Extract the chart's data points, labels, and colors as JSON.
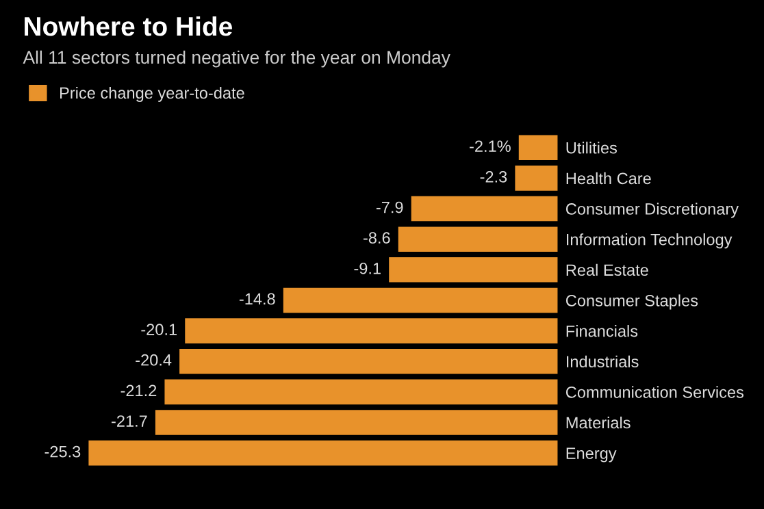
{
  "chart_data": {
    "type": "bar",
    "orientation": "horizontal",
    "title": "Nowhere to Hide",
    "subtitle": "All 11 sectors turned negative for the year on Monday",
    "categories": [
      "Utilities",
      "Health Care",
      "Consumer Discretionary",
      "Information Technology",
      "Real Estate",
      "Consumer Staples",
      "Financials",
      "Industrials",
      "Communication Services",
      "Materials",
      "Energy"
    ],
    "series": [
      {
        "name": "Price change year-to-date",
        "color": "#e8922b",
        "values": [
          -2.1,
          -2.3,
          -7.9,
          -8.6,
          -9.1,
          -14.8,
          -20.1,
          -20.4,
          -21.2,
          -21.7,
          -25.3
        ],
        "value_labels": [
          "-2.1%",
          "-2.3",
          "-7.9",
          "-8.6",
          "-9.1",
          "-14.8",
          "-20.1",
          "-20.4",
          "-21.2",
          "-21.7",
          "-25.3"
        ]
      }
    ],
    "legend": "top left",
    "grid": false
  }
}
